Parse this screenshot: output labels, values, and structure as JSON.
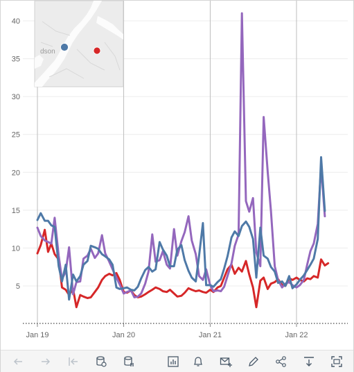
{
  "chart_data": {
    "type": "line",
    "title": "",
    "xlabel": "",
    "ylabel": "",
    "ylim": [
      0,
      42
    ],
    "yticks": [
      5,
      10,
      15,
      20,
      25,
      30,
      35,
      40
    ],
    "x_range": [
      "2018-12-01",
      "2022-07-15"
    ],
    "xticks": [
      {
        "label": "Jan 19",
        "date": "2019-01-01"
      },
      {
        "label": "Jan 20",
        "date": "2020-01-01"
      },
      {
        "label": "Jan 21",
        "date": "2021-01-01"
      },
      {
        "label": "Jan 22",
        "date": "2022-01-01"
      }
    ],
    "grid": true,
    "series": [
      {
        "color": "#d62728",
        "points": [
          [
            "2019-01-01",
            9.3
          ],
          [
            "2019-01-15",
            10.4
          ],
          [
            "2019-02-01",
            12.4
          ],
          [
            "2019-02-15",
            9.5
          ],
          [
            "2019-03-01",
            10.6
          ],
          [
            "2019-03-15",
            9.2
          ],
          [
            "2019-04-01",
            8.5
          ],
          [
            "2019-04-15",
            4.8
          ],
          [
            "2019-05-01",
            4.5
          ],
          [
            "2019-05-15",
            3.8
          ],
          [
            "2019-06-01",
            4.6
          ],
          [
            "2019-06-15",
            2.2
          ],
          [
            "2019-07-01",
            3.8
          ],
          [
            "2019-07-15",
            3.6
          ],
          [
            "2019-08-01",
            3.4
          ],
          [
            "2019-08-15",
            3.5
          ],
          [
            "2019-09-01",
            4.2
          ],
          [
            "2019-09-15",
            4.8
          ],
          [
            "2019-10-01",
            5.8
          ],
          [
            "2019-10-15",
            6.3
          ],
          [
            "2019-11-01",
            6.6
          ],
          [
            "2019-11-15",
            6.4
          ],
          [
            "2019-12-01",
            6.7
          ],
          [
            "2019-12-15",
            5.8
          ],
          [
            "2020-01-01",
            4.2
          ],
          [
            "2020-01-15",
            4.1
          ],
          [
            "2020-02-01",
            4.4
          ],
          [
            "2020-02-15",
            3.8
          ],
          [
            "2020-03-01",
            3.5
          ],
          [
            "2020-03-15",
            3.6
          ],
          [
            "2020-04-01",
            3.9
          ],
          [
            "2020-04-15",
            4.2
          ],
          [
            "2020-05-01",
            4.5
          ],
          [
            "2020-05-15",
            4.8
          ],
          [
            "2020-06-01",
            4.6
          ],
          [
            "2020-06-15",
            4.3
          ],
          [
            "2020-07-01",
            4.2
          ],
          [
            "2020-07-15",
            4.5
          ],
          [
            "2020-08-01",
            4.0
          ],
          [
            "2020-08-15",
            3.6
          ],
          [
            "2020-09-01",
            3.7
          ],
          [
            "2020-09-15",
            4.1
          ],
          [
            "2020-10-01",
            4.7
          ],
          [
            "2020-10-15",
            4.5
          ],
          [
            "2020-11-01",
            4.3
          ],
          [
            "2020-11-15",
            4.4
          ],
          [
            "2020-12-01",
            4.2
          ],
          [
            "2020-12-15",
            4.1
          ],
          [
            "2021-01-01",
            4.5
          ],
          [
            "2021-01-15",
            4.2
          ],
          [
            "2021-02-01",
            4.8
          ],
          [
            "2021-02-15",
            5.0
          ],
          [
            "2021-03-01",
            6.1
          ],
          [
            "2021-03-15",
            7.2
          ],
          [
            "2021-04-01",
            7.8
          ],
          [
            "2021-04-15",
            6.6
          ],
          [
            "2021-05-01",
            7.4
          ],
          [
            "2021-05-15",
            6.9
          ],
          [
            "2021-06-01",
            8.3
          ],
          [
            "2021-06-15",
            6.5
          ],
          [
            "2021-07-01",
            4.8
          ],
          [
            "2021-07-15",
            2.2
          ],
          [
            "2021-08-01",
            5.7
          ],
          [
            "2021-08-15",
            6.1
          ],
          [
            "2021-09-01",
            4.6
          ],
          [
            "2021-09-15",
            5.3
          ],
          [
            "2021-10-01",
            5.5
          ],
          [
            "2021-10-15",
            5.9
          ],
          [
            "2021-11-01",
            5.1
          ],
          [
            "2021-11-15",
            5.0
          ],
          [
            "2021-12-01",
            6.0
          ],
          [
            "2021-12-15",
            5.8
          ],
          [
            "2022-01-01",
            6.1
          ],
          [
            "2022-01-15",
            5.8
          ],
          [
            "2022-02-01",
            5.6
          ],
          [
            "2022-02-15",
            6.0
          ],
          [
            "2022-03-01",
            5.9
          ],
          [
            "2022-03-15",
            6.3
          ],
          [
            "2022-04-01",
            6.1
          ],
          [
            "2022-04-15",
            8.5
          ],
          [
            "2022-05-01",
            7.7
          ],
          [
            "2022-05-15",
            8.0
          ]
        ]
      },
      {
        "color": "#9467bd",
        "points": [
          [
            "2019-01-01",
            12.7
          ],
          [
            "2019-01-15",
            11.6
          ],
          [
            "2019-02-01",
            11.0
          ],
          [
            "2019-02-15",
            10.8
          ],
          [
            "2019-03-01",
            10.6
          ],
          [
            "2019-03-15",
            14.0
          ],
          [
            "2019-04-01",
            9.0
          ],
          [
            "2019-04-15",
            5.9
          ],
          [
            "2019-05-01",
            6.9
          ],
          [
            "2019-05-15",
            10.1
          ],
          [
            "2019-06-01",
            3.9
          ],
          [
            "2019-06-15",
            5.5
          ],
          [
            "2019-07-01",
            5.6
          ],
          [
            "2019-07-15",
            8.6
          ],
          [
            "2019-08-01",
            9.0
          ],
          [
            "2019-08-15",
            9.9
          ],
          [
            "2019-09-01",
            8.7
          ],
          [
            "2019-09-15",
            9.3
          ],
          [
            "2019-10-01",
            11.7
          ],
          [
            "2019-10-15",
            9.3
          ],
          [
            "2019-11-01",
            8.2
          ],
          [
            "2019-11-15",
            7.2
          ],
          [
            "2019-12-01",
            6.1
          ],
          [
            "2019-12-15",
            5.2
          ],
          [
            "2020-01-01",
            4.0
          ],
          [
            "2020-01-15",
            4.2
          ],
          [
            "2020-02-01",
            4.4
          ],
          [
            "2020-02-15",
            3.5
          ],
          [
            "2020-03-01",
            3.6
          ],
          [
            "2020-03-15",
            4.0
          ],
          [
            "2020-04-01",
            5.3
          ],
          [
            "2020-04-15",
            6.9
          ],
          [
            "2020-05-01",
            11.8
          ],
          [
            "2020-05-15",
            8.2
          ],
          [
            "2020-06-01",
            8.4
          ],
          [
            "2020-06-15",
            9.6
          ],
          [
            "2020-07-01",
            7.8
          ],
          [
            "2020-07-15",
            7.3
          ],
          [
            "2020-08-01",
            12.5
          ],
          [
            "2020-08-15",
            9.0
          ],
          [
            "2020-09-01",
            10.9
          ],
          [
            "2020-09-15",
            12.1
          ],
          [
            "2020-10-01",
            14.2
          ],
          [
            "2020-10-15",
            11.0
          ],
          [
            "2020-11-01",
            9.2
          ],
          [
            "2020-11-15",
            6.3
          ],
          [
            "2020-12-01",
            5.8
          ],
          [
            "2020-12-15",
            7.2
          ],
          [
            "2021-01-01",
            5.1
          ],
          [
            "2021-01-15",
            4.3
          ],
          [
            "2021-02-01",
            4.4
          ],
          [
            "2021-02-15",
            4.3
          ],
          [
            "2021-03-01",
            4.9
          ],
          [
            "2021-03-15",
            6.3
          ],
          [
            "2021-04-01",
            8.0
          ],
          [
            "2021-04-15",
            10.3
          ],
          [
            "2021-05-01",
            11.8
          ],
          [
            "2021-05-15",
            41.0
          ],
          [
            "2021-06-01",
            16.2
          ],
          [
            "2021-06-15",
            14.8
          ],
          [
            "2021-07-01",
            16.6
          ],
          [
            "2021-07-15",
            9.4
          ],
          [
            "2021-08-01",
            7.6
          ],
          [
            "2021-08-15",
            27.3
          ],
          [
            "2021-09-01",
            20.1
          ],
          [
            "2021-09-15",
            14.9
          ],
          [
            "2021-10-01",
            7.6
          ],
          [
            "2021-10-15",
            5.8
          ],
          [
            "2021-11-01",
            4.8
          ],
          [
            "2021-11-15",
            5.3
          ],
          [
            "2021-12-01",
            5.5
          ],
          [
            "2021-12-15",
            5.1
          ],
          [
            "2022-01-01",
            4.8
          ],
          [
            "2022-01-15",
            5.1
          ],
          [
            "2022-02-01",
            5.8
          ],
          [
            "2022-02-15",
            7.8
          ],
          [
            "2022-03-01",
            9.6
          ],
          [
            "2022-03-15",
            10.6
          ],
          [
            "2022-04-01",
            13.2
          ],
          [
            "2022-04-15",
            20.8
          ],
          [
            "2022-05-01",
            14.2
          ]
        ]
      },
      {
        "color": "#4e79a7",
        "points": [
          [
            "2019-01-01",
            13.7
          ],
          [
            "2019-01-15",
            14.6
          ],
          [
            "2019-02-01",
            13.6
          ],
          [
            "2019-02-15",
            13.6
          ],
          [
            "2019-03-01",
            13.0
          ],
          [
            "2019-03-15",
            12.8
          ],
          [
            "2019-04-01",
            7.6
          ],
          [
            "2019-04-15",
            5.6
          ],
          [
            "2019-05-01",
            7.8
          ],
          [
            "2019-05-15",
            3.2
          ],
          [
            "2019-06-01",
            6.5
          ],
          [
            "2019-06-15",
            5.6
          ],
          [
            "2019-07-01",
            6.3
          ],
          [
            "2019-07-15",
            7.8
          ],
          [
            "2019-08-01",
            8.3
          ],
          [
            "2019-08-15",
            10.3
          ],
          [
            "2019-09-01",
            10.1
          ],
          [
            "2019-09-15",
            9.9
          ],
          [
            "2019-10-01",
            9.2
          ],
          [
            "2019-10-15",
            8.9
          ],
          [
            "2019-11-01",
            8.5
          ],
          [
            "2019-11-15",
            7.8
          ],
          [
            "2019-12-01",
            4.8
          ],
          [
            "2019-12-15",
            4.6
          ],
          [
            "2020-01-01",
            4.7
          ],
          [
            "2020-01-15",
            4.8
          ],
          [
            "2020-02-01",
            4.5
          ],
          [
            "2020-02-15",
            4.4
          ],
          [
            "2020-03-01",
            4.9
          ],
          [
            "2020-03-15",
            6.0
          ],
          [
            "2020-04-01",
            7.1
          ],
          [
            "2020-04-15",
            7.5
          ],
          [
            "2020-05-01",
            6.9
          ],
          [
            "2020-05-15",
            7.2
          ],
          [
            "2020-06-01",
            10.8
          ],
          [
            "2020-06-15",
            9.8
          ],
          [
            "2020-07-01",
            9.0
          ],
          [
            "2020-07-15",
            7.6
          ],
          [
            "2020-08-01",
            7.6
          ],
          [
            "2020-08-15",
            9.8
          ],
          [
            "2020-09-01",
            10.4
          ],
          [
            "2020-09-15",
            8.4
          ],
          [
            "2020-10-01",
            7.0
          ],
          [
            "2020-10-15",
            6.1
          ],
          [
            "2020-11-01",
            5.6
          ],
          [
            "2020-11-15",
            9.0
          ],
          [
            "2020-12-01",
            13.3
          ],
          [
            "2020-12-15",
            5.1
          ],
          [
            "2021-01-01",
            5.1
          ],
          [
            "2021-01-15",
            4.9
          ],
          [
            "2021-02-01",
            5.5
          ],
          [
            "2021-02-15",
            5.9
          ],
          [
            "2021-03-01",
            7.3
          ],
          [
            "2021-03-15",
            8.9
          ],
          [
            "2021-04-01",
            11.4
          ],
          [
            "2021-04-15",
            12.2
          ],
          [
            "2021-05-01",
            11.6
          ],
          [
            "2021-05-15",
            12.9
          ],
          [
            "2021-06-01",
            13.5
          ],
          [
            "2021-06-15",
            12.8
          ],
          [
            "2021-07-01",
            11.2
          ],
          [
            "2021-07-15",
            6.1
          ],
          [
            "2021-08-01",
            12.7
          ],
          [
            "2021-08-15",
            9.0
          ],
          [
            "2021-09-01",
            8.6
          ],
          [
            "2021-09-15",
            7.5
          ],
          [
            "2021-10-01",
            6.9
          ],
          [
            "2021-10-15",
            5.4
          ],
          [
            "2021-11-01",
            5.6
          ],
          [
            "2021-11-15",
            5.0
          ],
          [
            "2021-12-01",
            6.3
          ],
          [
            "2021-12-15",
            4.7
          ],
          [
            "2022-01-01",
            5.2
          ],
          [
            "2022-01-15",
            5.8
          ],
          [
            "2022-02-01",
            6.4
          ],
          [
            "2022-02-15",
            7.1
          ],
          [
            "2022-03-01",
            7.8
          ],
          [
            "2022-03-15",
            8.6
          ],
          [
            "2022-04-01",
            11.2
          ],
          [
            "2022-04-15",
            22.0
          ],
          [
            "2022-05-01",
            14.9
          ]
        ]
      }
    ]
  },
  "inset_map": {
    "label": "dson",
    "markers": [
      {
        "color": "#4e79a7"
      },
      {
        "color": "#d62728"
      }
    ]
  },
  "toolbar": {
    "buttons": [
      {
        "icon": "undo-arrow-icon",
        "enabled": false
      },
      {
        "icon": "redo-arrow-icon",
        "enabled": false
      },
      {
        "icon": "revert-icon",
        "enabled": false
      },
      {
        "icon": "refresh-data-icon",
        "enabled": true
      },
      {
        "icon": "pause-data-icon",
        "enabled": true
      },
      {
        "icon": "view-data-icon",
        "enabled": true
      },
      {
        "icon": "alert-bell-icon",
        "enabled": true
      },
      {
        "icon": "subscribe-mail-icon",
        "enabled": true
      },
      {
        "icon": "edit-pencil-icon",
        "enabled": true
      },
      {
        "icon": "share-icon",
        "enabled": true
      },
      {
        "icon": "download-icon",
        "enabled": true
      },
      {
        "icon": "fullscreen-icon",
        "enabled": true
      }
    ]
  }
}
